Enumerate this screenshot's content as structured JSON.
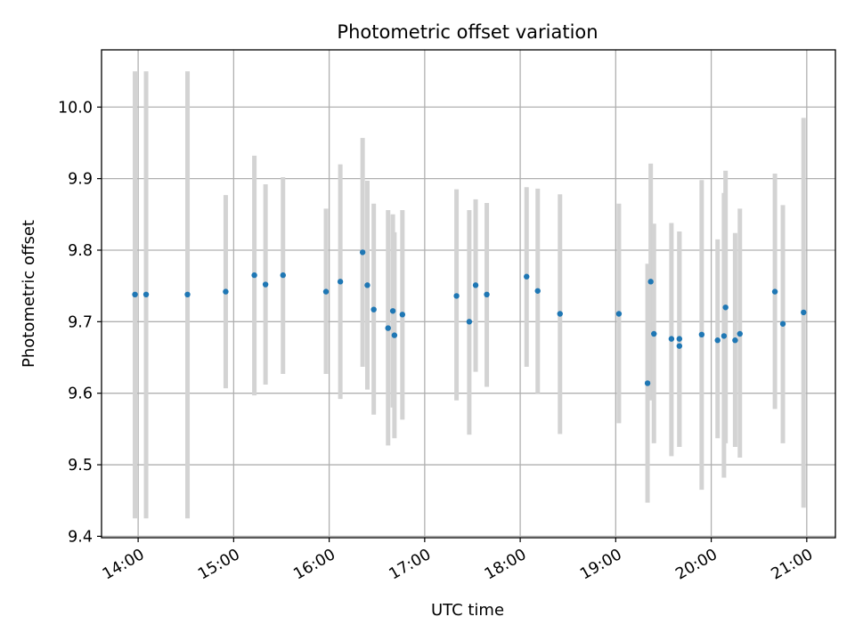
{
  "chart_data": {
    "type": "scatter",
    "title": "Photometric offset variation",
    "xlabel": "UTC time",
    "ylabel": "Photometric offset",
    "x_tick_labels": [
      "14:00",
      "15:00",
      "16:00",
      "17:00",
      "18:00",
      "19:00",
      "20:00",
      "21:00"
    ],
    "y_tick_labels": [
      "9.4",
      "9.5",
      "9.6",
      "9.7",
      "9.8",
      "9.9",
      "10.0"
    ],
    "xlim": [
      "13:37",
      "21:18"
    ],
    "ylim": [
      9.398,
      10.08
    ],
    "grid": true,
    "marker_color": "#1f77b4",
    "errorbar_color": "#d3d3d3",
    "points": [
      {
        "x": "13:58",
        "y": 9.738,
        "ylow": 9.425,
        "yhigh": 10.05
      },
      {
        "x": "14:05",
        "y": 9.738,
        "ylow": 9.425,
        "yhigh": 10.05
      },
      {
        "x": "14:31",
        "y": 9.738,
        "ylow": 9.425,
        "yhigh": 10.05
      },
      {
        "x": "14:55",
        "y": 9.742,
        "ylow": 9.607,
        "yhigh": 9.877
      },
      {
        "x": "15:13",
        "y": 9.765,
        "ylow": 9.597,
        "yhigh": 9.932
      },
      {
        "x": "15:20",
        "y": 9.752,
        "ylow": 9.612,
        "yhigh": 9.892
      },
      {
        "x": "15:31",
        "y": 9.765,
        "ylow": 9.627,
        "yhigh": 9.902
      },
      {
        "x": "15:58",
        "y": 9.742,
        "ylow": 9.627,
        "yhigh": 9.858
      },
      {
        "x": "16:07",
        "y": 9.756,
        "ylow": 9.592,
        "yhigh": 9.92
      },
      {
        "x": "16:21",
        "y": 9.797,
        "ylow": 9.637,
        "yhigh": 9.957
      },
      {
        "x": "16:24",
        "y": 9.751,
        "ylow": 9.605,
        "yhigh": 9.897
      },
      {
        "x": "16:28",
        "y": 9.717,
        "ylow": 9.57,
        "yhigh": 9.865
      },
      {
        "x": "16:37",
        "y": 9.691,
        "ylow": 9.527,
        "yhigh": 9.856
      },
      {
        "x": "16:40",
        "y": 9.715,
        "ylow": 9.58,
        "yhigh": 9.85
      },
      {
        "x": "16:41",
        "y": 9.681,
        "ylow": 9.537,
        "yhigh": 9.825
      },
      {
        "x": "16:46",
        "y": 9.71,
        "ylow": 9.563,
        "yhigh": 9.856
      },
      {
        "x": "17:20",
        "y": 9.736,
        "ylow": 9.59,
        "yhigh": 9.885
      },
      {
        "x": "17:28",
        "y": 9.7,
        "ylow": 9.542,
        "yhigh": 9.856
      },
      {
        "x": "17:32",
        "y": 9.751,
        "ylow": 9.63,
        "yhigh": 9.871
      },
      {
        "x": "17:39",
        "y": 9.738,
        "ylow": 9.609,
        "yhigh": 9.866
      },
      {
        "x": "18:04",
        "y": 9.763,
        "ylow": 9.637,
        "yhigh": 9.888
      },
      {
        "x": "18:11",
        "y": 9.743,
        "ylow": 9.6,
        "yhigh": 9.886
      },
      {
        "x": "18:25",
        "y": 9.711,
        "ylow": 9.543,
        "yhigh": 9.878
      },
      {
        "x": "19:02",
        "y": 9.711,
        "ylow": 9.558,
        "yhigh": 9.865
      },
      {
        "x": "19:20",
        "y": 9.614,
        "ylow": 9.447,
        "yhigh": 9.781
      },
      {
        "x": "19:22",
        "y": 9.756,
        "ylow": 9.59,
        "yhigh": 9.921
      },
      {
        "x": "19:24",
        "y": 9.683,
        "ylow": 9.53,
        "yhigh": 9.837
      },
      {
        "x": "19:35",
        "y": 9.676,
        "ylow": 9.512,
        "yhigh": 9.838
      },
      {
        "x": "19:40",
        "y": 9.676,
        "ylow": 9.525,
        "yhigh": 9.826
      },
      {
        "x": "19:40",
        "y": 9.666,
        "ylow": 9.525,
        "yhigh": 9.826
      },
      {
        "x": "19:54",
        "y": 9.682,
        "ylow": 9.465,
        "yhigh": 9.898
      },
      {
        "x": "20:04",
        "y": 9.674,
        "ylow": 9.537,
        "yhigh": 9.815
      },
      {
        "x": "20:08",
        "y": 9.68,
        "ylow": 9.482,
        "yhigh": 9.88
      },
      {
        "x": "20:09",
        "y": 9.72,
        "ylow": 9.53,
        "yhigh": 9.911
      },
      {
        "x": "20:15",
        "y": 9.674,
        "ylow": 9.525,
        "yhigh": 9.824
      },
      {
        "x": "20:18",
        "y": 9.683,
        "ylow": 9.51,
        "yhigh": 9.858
      },
      {
        "x": "20:40",
        "y": 9.742,
        "ylow": 9.578,
        "yhigh": 9.907
      },
      {
        "x": "20:45",
        "y": 9.697,
        "ylow": 9.53,
        "yhigh": 9.863
      },
      {
        "x": "20:58",
        "y": 9.713,
        "ylow": 9.44,
        "yhigh": 9.985
      }
    ]
  }
}
